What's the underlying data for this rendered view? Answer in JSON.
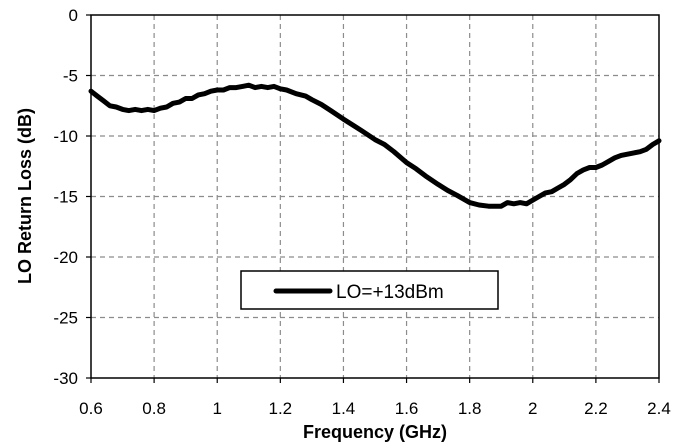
{
  "chart_data": {
    "type": "line",
    "title": "",
    "xlabel": "Frequency (GHz)",
    "ylabel": "LO Return Loss (dB)",
    "xlim": [
      0.6,
      2.4
    ],
    "ylim": [
      -30,
      0
    ],
    "xticks": [
      "0.6",
      "0.8",
      "1",
      "1.2",
      "1.4",
      "1.6",
      "1.8",
      "2",
      "2.2",
      "2.4"
    ],
    "yticks": [
      "0",
      "-5",
      "-10",
      "-15",
      "-20",
      "-25",
      "-30"
    ],
    "grid": true,
    "legend": "center",
    "series": [
      {
        "name": "LO=+13dBm",
        "color": "#000000",
        "x": [
          0.6,
          0.62,
          0.64,
          0.66,
          0.68,
          0.7,
          0.72,
          0.74,
          0.76,
          0.78,
          0.8,
          0.82,
          0.84,
          0.86,
          0.88,
          0.9,
          0.92,
          0.94,
          0.96,
          0.98,
          1.0,
          1.02,
          1.04,
          1.06,
          1.08,
          1.1,
          1.12,
          1.14,
          1.16,
          1.18,
          1.2,
          1.22,
          1.25,
          1.28,
          1.3,
          1.33,
          1.36,
          1.4,
          1.43,
          1.46,
          1.5,
          1.53,
          1.56,
          1.6,
          1.63,
          1.66,
          1.7,
          1.73,
          1.76,
          1.8,
          1.83,
          1.86,
          1.9,
          1.92,
          1.94,
          1.96,
          1.98,
          2.0,
          2.02,
          2.04,
          2.06,
          2.08,
          2.1,
          2.12,
          2.14,
          2.16,
          2.18,
          2.2,
          2.22,
          2.24,
          2.26,
          2.28,
          2.3,
          2.32,
          2.34,
          2.36,
          2.38,
          2.4
        ],
        "values": [
          -6.3,
          -6.7,
          -7.1,
          -7.5,
          -7.6,
          -7.8,
          -7.9,
          -7.8,
          -7.9,
          -7.8,
          -7.9,
          -7.7,
          -7.6,
          -7.3,
          -7.2,
          -6.9,
          -6.9,
          -6.6,
          -6.5,
          -6.3,
          -6.2,
          -6.2,
          -6.0,
          -6.0,
          -5.9,
          -5.8,
          -6.0,
          -5.9,
          -6.0,
          -5.9,
          -6.1,
          -6.2,
          -6.5,
          -6.7,
          -7.0,
          -7.4,
          -7.9,
          -8.6,
          -9.1,
          -9.6,
          -10.3,
          -10.7,
          -11.3,
          -12.2,
          -12.7,
          -13.3,
          -14.0,
          -14.5,
          -14.9,
          -15.5,
          -15.7,
          -15.8,
          -15.8,
          -15.5,
          -15.6,
          -15.5,
          -15.6,
          -15.3,
          -15.0,
          -14.7,
          -14.6,
          -14.3,
          -14.0,
          -13.6,
          -13.1,
          -12.8,
          -12.6,
          -12.6,
          -12.4,
          -12.1,
          -11.8,
          -11.6,
          -11.5,
          -11.4,
          -11.3,
          -11.1,
          -10.7,
          -10.4
        ]
      }
    ]
  }
}
